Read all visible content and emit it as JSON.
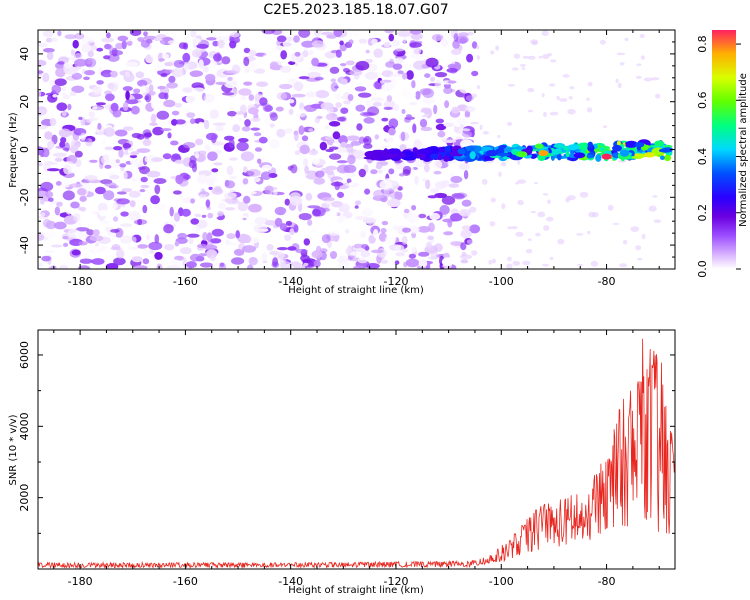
{
  "title": "C2E5.2023.185.18.07.G07",
  "chart_data": [
    {
      "type": "heatmap",
      "xlabel": "Height of straight line (km)",
      "ylabel": "Frequency (Hz)",
      "xlim": [
        -188,
        -67
      ],
      "ylim": [
        -50,
        50
      ],
      "x_ticks": [
        -180,
        -160,
        -140,
        -120,
        -100,
        -80
      ],
      "y_ticks": [
        -40,
        -20,
        0,
        20,
        40
      ],
      "colorbar": {
        "label": "Normalized spectral amplitude",
        "range": [
          0,
          0.85
        ],
        "ticks": [
          0.0,
          0.2,
          0.4,
          0.6,
          0.8
        ],
        "colormap": [
          "#ffffff",
          "#d9b3ff",
          "#9b4dff",
          "#6a00e0",
          "#2a00ff",
          "#0050ff",
          "#00d8ff",
          "#00ff80",
          "#60ff00",
          "#d8ff00",
          "#ffb000",
          "#ff2060"
        ]
      },
      "features": {
        "noise_region_x": [
          -188,
          -105
        ],
        "signal_band_x": [
          -125,
          -68
        ],
        "signal_freq_hz": [
          -4,
          2
        ],
        "peak_amplitude": 0.85,
        "peak_x": -80,
        "peak_freq_hz": -3
      },
      "grid": false
    },
    {
      "type": "line",
      "xlabel": "Height of straight line (km)",
      "ylabel": "SNR (10 * v/v)",
      "xlim": [
        -188,
        -67
      ],
      "ylim": [
        0,
        6700
      ],
      "x_ticks": [
        -180,
        -160,
        -140,
        -120,
        -100,
        -80
      ],
      "y_ticks": [
        2000,
        4000,
        6000
      ],
      "series": [
        {
          "color": "#e8261f",
          "envelope_x": [
            -188,
            -140,
            -106,
            -104,
            -102,
            -100,
            -98,
            -96,
            -94,
            -92,
            -90,
            -88,
            -86,
            -84,
            -82,
            -80,
            -78,
            -76,
            -74,
            -73,
            -72,
            -70,
            -68,
            -67
          ],
          "envelope_max": [
            180,
            180,
            220,
            300,
            420,
            650,
            900,
            1250,
            1600,
            1850,
            1900,
            2000,
            2200,
            1800,
            2800,
            3200,
            4400,
            5000,
            5500,
            6700,
            6200,
            6300,
            4200,
            3300
          ],
          "envelope_min": [
            40,
            40,
            60,
            100,
            150,
            200,
            300,
            400,
            500,
            550,
            600,
            650,
            700,
            700,
            900,
            1100,
            1000,
            1200,
            1400,
            1500,
            1200,
            800,
            600,
            500
          ]
        }
      ],
      "grid": false
    }
  ]
}
